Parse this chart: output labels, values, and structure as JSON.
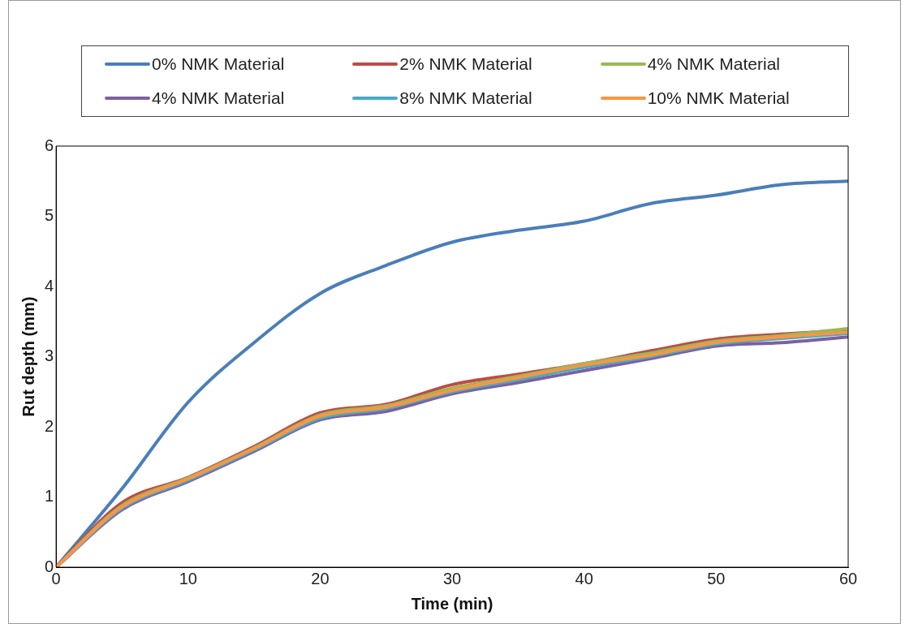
{
  "chart_data": {
    "type": "line",
    "xlabel": "Time (min)",
    "ylabel": "Rut depth (mm)",
    "x": [
      0,
      5,
      10,
      15,
      20,
      25,
      30,
      35,
      40,
      45,
      50,
      55,
      60
    ],
    "series": [
      {
        "name": "0% NMK Material",
        "color": "#4a7ebb",
        "values": [
          0,
          1.12,
          2.35,
          3.2,
          3.9,
          4.3,
          4.63,
          4.8,
          4.93,
          5.18,
          5.3,
          5.45,
          5.5
        ]
      },
      {
        "name": "2% NMK Material",
        "color": "#be4b48",
        "values": [
          0,
          0.92,
          1.28,
          1.72,
          2.2,
          2.32,
          2.6,
          2.75,
          2.9,
          3.08,
          3.25,
          3.32,
          3.38
        ]
      },
      {
        "name": "4% NMK Material",
        "color": "#98b954",
        "values": [
          0,
          0.88,
          1.27,
          1.7,
          2.17,
          2.3,
          2.55,
          2.72,
          2.9,
          3.05,
          3.22,
          3.3,
          3.4
        ]
      },
      {
        "name": "4% NMK Material",
        "color": "#7d60a0",
        "values": [
          0,
          0.82,
          1.22,
          1.65,
          2.1,
          2.22,
          2.47,
          2.63,
          2.8,
          2.97,
          3.15,
          3.2,
          3.28
        ]
      },
      {
        "name": "8% NMK Material",
        "color": "#46aac5",
        "values": [
          0,
          0.84,
          1.24,
          1.67,
          2.12,
          2.26,
          2.5,
          2.67,
          2.85,
          3.0,
          3.18,
          3.26,
          3.33
        ]
      },
      {
        "name": "10% NMK Material",
        "color": "#f79646",
        "values": [
          0,
          0.86,
          1.26,
          1.69,
          2.15,
          2.28,
          2.52,
          2.7,
          2.88,
          3.02,
          3.2,
          3.28,
          3.35
        ]
      }
    ],
    "xlim": [
      0,
      60
    ],
    "xticks": [
      0,
      10,
      20,
      30,
      40,
      50,
      60
    ],
    "ylim": [
      0,
      6
    ],
    "yticks": [
      0,
      1,
      2,
      3,
      4,
      5,
      6
    ],
    "grid": false,
    "legend": "top",
    "marker": "none",
    "line_style": "solid"
  }
}
